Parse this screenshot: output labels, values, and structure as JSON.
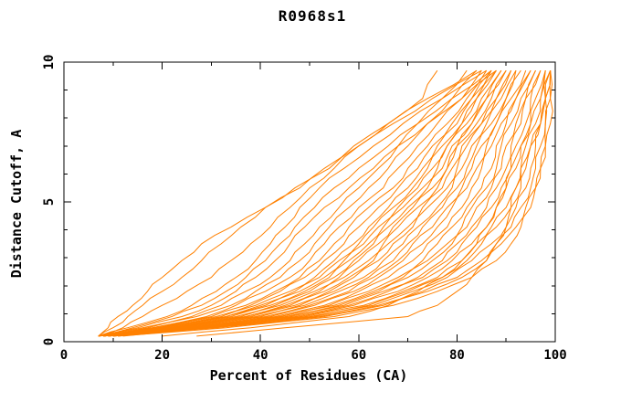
{
  "page": {
    "background_color": "#ffffff",
    "text_color": "#000000"
  },
  "chart_data": {
    "type": "line",
    "title": "R0968s1",
    "xlabel": "Percent of Residues (CA)",
    "ylabel": "Distance Cutoff, A",
    "xlim": [
      0,
      100
    ],
    "ylim": [
      0,
      10
    ],
    "grid": false,
    "legend": "none",
    "line_color": "#ff8000",
    "axis_color": "#000000",
    "x_major_ticks": [
      0,
      20,
      40,
      60,
      80,
      100
    ],
    "x_major_tick_labels": [
      "0",
      "20",
      "40",
      "60",
      "80",
      "100"
    ],
    "x_minor_ticks": [
      10,
      30,
      50,
      70,
      90
    ],
    "y_major_ticks": [
      0,
      5,
      10
    ],
    "y_major_tick_labels": [
      "0",
      "5",
      "10"
    ],
    "y_minor_ticks": [
      1,
      2,
      3,
      4,
      6,
      7,
      8,
      9
    ],
    "y_grid": [
      0.2,
      0.5,
      0.9,
      1.3,
      1.8,
      2.3,
      2.9,
      3.5,
      4.1,
      4.8,
      5.5,
      6.2,
      7.0,
      7.8,
      8.7,
      9.7
    ],
    "series": [
      [
        11,
        33,
        55,
        67,
        76,
        83,
        88,
        91,
        93,
        95,
        96,
        97,
        98,
        99,
        99,
        99
      ],
      [
        10,
        31,
        53,
        65,
        74,
        81,
        86,
        89,
        92,
        94,
        96,
        97,
        98,
        98,
        99,
        99
      ],
      [
        12,
        30,
        52,
        64,
        73,
        80,
        85,
        88,
        91,
        93,
        95,
        96,
        97,
        98,
        98,
        99
      ],
      [
        10,
        30,
        51,
        63,
        71,
        78,
        83,
        87,
        90,
        92,
        94,
        95,
        96,
        97,
        98,
        99
      ],
      [
        11,
        29,
        50,
        62,
        70,
        77,
        82,
        85,
        88,
        91,
        93,
        94,
        95,
        97,
        98,
        98
      ],
      [
        9,
        29,
        49,
        61,
        69,
        76,
        81,
        84,
        87,
        90,
        92,
        93,
        94,
        96,
        97,
        98
      ],
      [
        10,
        28,
        48,
        59,
        68,
        74,
        79,
        83,
        86,
        88,
        90,
        92,
        93,
        95,
        96,
        98
      ],
      [
        9,
        28,
        47,
        58,
        66,
        73,
        78,
        81,
        84,
        87,
        89,
        91,
        92,
        94,
        95,
        97
      ],
      [
        10,
        27,
        46,
        57,
        65,
        72,
        77,
        80,
        83,
        86,
        88,
        90,
        91,
        93,
        94,
        97
      ],
      [
        8,
        27,
        45,
        56,
        64,
        70,
        75,
        79,
        82,
        84,
        87,
        89,
        90,
        92,
        94,
        96
      ],
      [
        9,
        26,
        44,
        55,
        63,
        69,
        74,
        78,
        81,
        83,
        86,
        88,
        89,
        91,
        93,
        96
      ],
      [
        8,
        26,
        44,
        54,
        62,
        68,
        73,
        76,
        79,
        82,
        85,
        87,
        88,
        90,
        92,
        95
      ],
      [
        9,
        25,
        43,
        53,
        60,
        66,
        71,
        74,
        78,
        81,
        83,
        85,
        87,
        89,
        92,
        95
      ],
      [
        8,
        25,
        42,
        51,
        59,
        64,
        69,
        73,
        76,
        79,
        82,
        84,
        86,
        88,
        91,
        94
      ],
      [
        9,
        24,
        41,
        50,
        58,
        63,
        68,
        71,
        75,
        78,
        81,
        83,
        85,
        88,
        90,
        93
      ],
      [
        8,
        24,
        40,
        49,
        56,
        62,
        67,
        70,
        73,
        77,
        80,
        82,
        84,
        87,
        90,
        92
      ],
      [
        7,
        23,
        39,
        48,
        55,
        61,
        65,
        69,
        72,
        76,
        79,
        81,
        83,
        86,
        89,
        92
      ],
      [
        8,
        23,
        38,
        47,
        54,
        59,
        64,
        67,
        71,
        74,
        78,
        80,
        82,
        85,
        88,
        91
      ],
      [
        7,
        22,
        37,
        46,
        53,
        58,
        63,
        66,
        70,
        73,
        77,
        79,
        81,
        85,
        88,
        91
      ],
      [
        8,
        22,
        37,
        45,
        52,
        57,
        62,
        65,
        68,
        72,
        76,
        78,
        80,
        84,
        87,
        90
      ],
      [
        7,
        21,
        36,
        44,
        51,
        56,
        60,
        64,
        67,
        71,
        75,
        78,
        80,
        83,
        86,
        90
      ],
      [
        8,
        21,
        35,
        43,
        50,
        55,
        59,
        63,
        66,
        70,
        74,
        77,
        79,
        83,
        86,
        89
      ],
      [
        7,
        20,
        34,
        42,
        49,
        54,
        58,
        62,
        65,
        69,
        73,
        76,
        78,
        82,
        85,
        89
      ],
      [
        8,
        20,
        33,
        41,
        48,
        53,
        57,
        61,
        64,
        68,
        72,
        75,
        78,
        81,
        84,
        88
      ],
      [
        7,
        20,
        33,
        40,
        47,
        52,
        56,
        60,
        63,
        67,
        71,
        74,
        77,
        81,
        84,
        88
      ],
      [
        8,
        19,
        32,
        39,
        46,
        51,
        55,
        59,
        62,
        66,
        70,
        73,
        76,
        80,
        83,
        87
      ],
      [
        7,
        19,
        31,
        38,
        44,
        49,
        53,
        57,
        60,
        64,
        68,
        72,
        75,
        79,
        83,
        87
      ],
      [
        7,
        18,
        30,
        37,
        43,
        48,
        52,
        55,
        58,
        62,
        67,
        70,
        74,
        78,
        82,
        86
      ],
      [
        8,
        18,
        29,
        35,
        41,
        46,
        50,
        53,
        56,
        60,
        65,
        68,
        72,
        76,
        81,
        85
      ],
      [
        7,
        17,
        27,
        34,
        39,
        44,
        48,
        51,
        54,
        58,
        62,
        66,
        70,
        74,
        79,
        84
      ],
      [
        7,
        16,
        26,
        32,
        37,
        42,
        46,
        49,
        52,
        56,
        60,
        64,
        68,
        72,
        77,
        82
      ],
      [
        7,
        15,
        24,
        30,
        35,
        39,
        43,
        46,
        49,
        53,
        58,
        63,
        68,
        74,
        81,
        88
      ],
      [
        7,
        14,
        22,
        28,
        33,
        37,
        41,
        44,
        47,
        51,
        55,
        60,
        66,
        72,
        79,
        87
      ],
      [
        7,
        13,
        21,
        26,
        31,
        35,
        39,
        42,
        45,
        48,
        52,
        57,
        63,
        69,
        77,
        86
      ],
      [
        7,
        12,
        16,
        20,
        25,
        30,
        34,
        38,
        42,
        46,
        50,
        55,
        60,
        67,
        75,
        85
      ],
      [
        7,
        10,
        13,
        16,
        20,
        24,
        28,
        32,
        36,
        41,
        48,
        53,
        59,
        66,
        74,
        84
      ],
      [
        7,
        9,
        11,
        14,
        17,
        20,
        24,
        28,
        34,
        41,
        47,
        54,
        60,
        66,
        73,
        76
      ],
      [
        27,
        45,
        70,
        76,
        80,
        83,
        86,
        88,
        90,
        91,
        92,
        93,
        95,
        97,
        98,
        99
      ],
      [
        20,
        38,
        58,
        66,
        72,
        77,
        81,
        84,
        86,
        88,
        90,
        91,
        93,
        95,
        97,
        99
      ]
    ]
  }
}
